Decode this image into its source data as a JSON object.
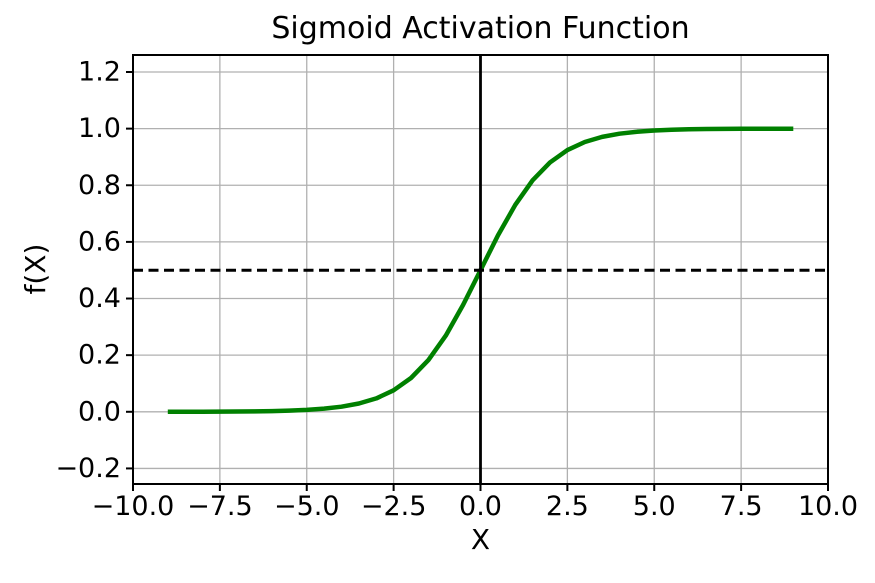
{
  "chart_data": {
    "type": "line",
    "title": "Sigmoid Activation Function",
    "xlabel": "X",
    "ylabel": "f(X)",
    "xlim": [
      -10,
      10
    ],
    "ylim": [
      -0.255,
      1.26
    ],
    "xticks": [
      -10,
      -7.5,
      -5,
      -2.5,
      0,
      2.5,
      5,
      7.5,
      10
    ],
    "xtick_labels": [
      "−10.0",
      "−7.5",
      "−5.0",
      "−2.5",
      "0.0",
      "2.5",
      "5.0",
      "7.5",
      "10.0"
    ],
    "yticks": [
      -0.2,
      0,
      0.2,
      0.4,
      0.6,
      0.8,
      1.0,
      1.2
    ],
    "ytick_labels": [
      "−0.2",
      "0.0",
      "0.2",
      "0.4",
      "0.6",
      "0.8",
      "1.0",
      "1.2"
    ],
    "grid": true,
    "legend": "none",
    "colors": {
      "curve": "#008000",
      "grid": "#b0b0b0",
      "axis": "#000000",
      "reference": "#000000",
      "text": "#000000",
      "background": "#ffffff"
    },
    "series": [
      {
        "name": "sigmoid-curve",
        "color": "#008000",
        "style": "solid",
        "line_width": 4.5,
        "x": [
          -9,
          -8.5,
          -8,
          -7.5,
          -7,
          -6.5,
          -6,
          -5.5,
          -5,
          -4.5,
          -4,
          -3.5,
          -3,
          -2.5,
          -2,
          -1.5,
          -1,
          -0.5,
          0,
          0.5,
          1,
          1.5,
          2,
          2.5,
          3,
          3.5,
          4,
          4.5,
          5,
          5.5,
          6,
          6.5,
          7,
          7.5,
          8,
          8.5,
          9
        ],
        "y": [
          0.0001,
          0.0002,
          0.0003,
          0.0006,
          0.0009,
          0.0015,
          0.0025,
          0.0041,
          0.0067,
          0.0111,
          0.018,
          0.0293,
          0.0474,
          0.0759,
          0.1192,
          0.1824,
          0.2689,
          0.3775,
          0.5,
          0.6225,
          0.7311,
          0.8176,
          0.8808,
          0.9241,
          0.9526,
          0.9707,
          0.982,
          0.9889,
          0.9933,
          0.9959,
          0.9975,
          0.9985,
          0.9991,
          0.9994,
          0.9997,
          0.9998,
          0.9999
        ]
      }
    ],
    "reference_lines": [
      {
        "orientation": "horizontal",
        "value": 0.5,
        "style": "dashed",
        "color": "#000000",
        "line_width": 3
      },
      {
        "orientation": "vertical",
        "value": 0,
        "style": "solid",
        "color": "#000000",
        "line_width": 2.8
      }
    ]
  }
}
